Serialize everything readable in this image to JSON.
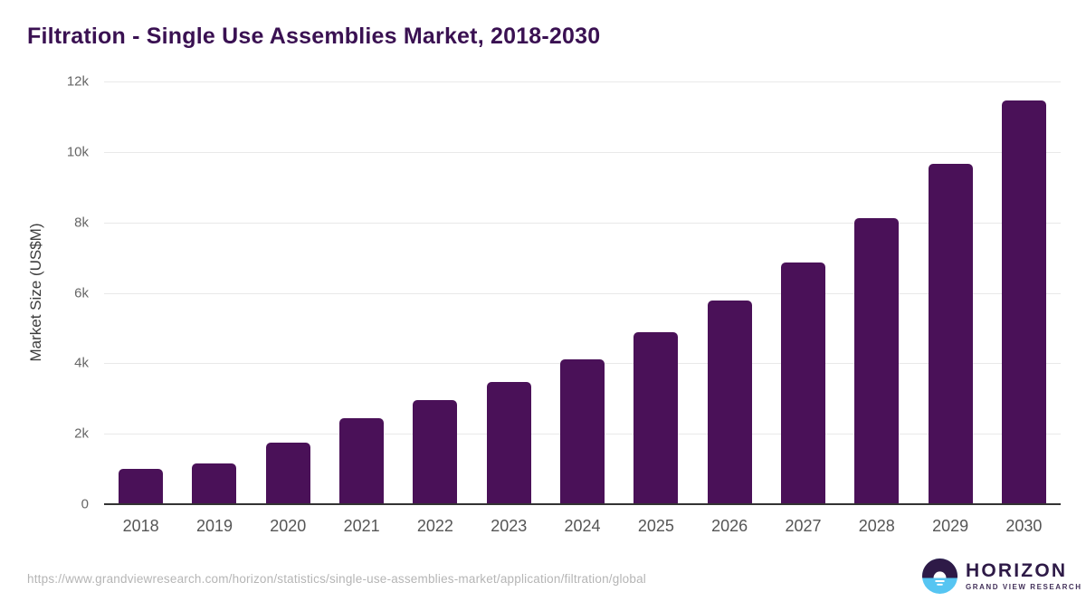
{
  "title": "Filtration - Single Use Assemblies Market, 2018-2030",
  "chart_data": {
    "type": "bar",
    "categories": [
      "2018",
      "2019",
      "2020",
      "2021",
      "2022",
      "2023",
      "2024",
      "2025",
      "2026",
      "2027",
      "2028",
      "2029",
      "2030"
    ],
    "values": [
      1000,
      1170,
      1750,
      2430,
      2960,
      3480,
      4110,
      4880,
      5790,
      6860,
      8130,
      9660,
      11460
    ],
    "title": "Filtration - Single Use Assemblies Market, 2018-2030",
    "xlabel": "",
    "ylabel": "Market Size (US$M)",
    "ylim": [
      0,
      12000
    ],
    "yticks": [
      0,
      2000,
      4000,
      6000,
      8000,
      10000,
      12000
    ],
    "ytick_labels": [
      "0",
      "2k",
      "4k",
      "6k",
      "8k",
      "10k",
      "12k"
    ],
    "grid": true,
    "legend": "none",
    "bar_color": "#4a1158"
  },
  "footer": {
    "source_url": "https://www.grandviewresearch.com/horizon/statistics/single-use-assemblies-market/application/filtration/global",
    "logo": {
      "wordmark": "HORIZON",
      "subtitle": "GRAND VIEW RESEARCH"
    }
  },
  "colors": {
    "title_text": "#3a1152",
    "bar": "#4a1158",
    "gridline": "#e9e9e9",
    "axis_line": "#333333",
    "y_tick_text": "#666666",
    "x_tick_text": "#555555",
    "url_text": "#b5b5b5",
    "logo_purple": "#2e1a47",
    "logo_blue": "#56c5f2"
  }
}
